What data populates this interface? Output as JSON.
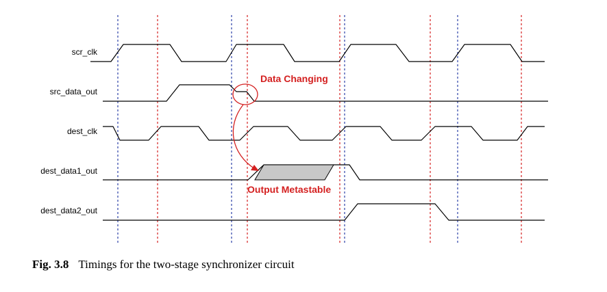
{
  "signals": [
    {
      "id": "scr_clk",
      "label": "scr_clk"
    },
    {
      "id": "src_data_out",
      "label": "src_data_out"
    },
    {
      "id": "dest_clk",
      "label": "dest_clk"
    },
    {
      "id": "dest_data1_out",
      "label": "dest_data1_out"
    },
    {
      "id": "dest_data2_out",
      "label": "dest_data2_out"
    }
  ],
  "annotations": {
    "data_changing": "Data Changing",
    "output_metastable": "Output Metastable"
  },
  "caption": {
    "number": "Fig. 3.8",
    "text": "Timings for the two-stage synchronizer circuit"
  },
  "colors": {
    "src_clock_edge_marker": "#2b3fa8",
    "dest_clock_edge_marker": "#d42020",
    "annotation": "#d42020",
    "metastable_fill": "#c8c8c8"
  }
}
